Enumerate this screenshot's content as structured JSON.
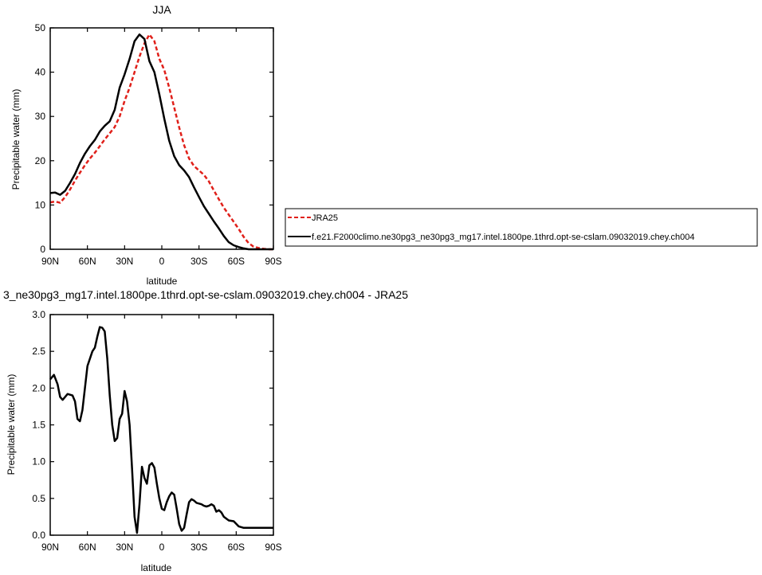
{
  "chart_data": [
    {
      "type": "line",
      "title": "JJA",
      "xlabel": "latitude",
      "ylabel": "Precipitable water (mm)",
      "xlim": [
        90,
        -90
      ],
      "ylim": [
        0,
        50
      ],
      "x_tick_values": [
        90,
        60,
        30,
        0,
        -30,
        -60,
        -90
      ],
      "x_tick_labels": [
        "90N",
        "60N",
        "30N",
        "0",
        "30S",
        "60S",
        "90S"
      ],
      "y_tick_values": [
        0,
        10,
        20,
        30,
        40,
        50
      ],
      "y_tick_labels": [
        "0",
        "10",
        "20",
        "30",
        "40",
        "50"
      ],
      "grid": false,
      "legend_position": "right",
      "series": [
        {
          "name": "JRA25",
          "color": "#e0201a",
          "dash": "dashed",
          "x": [
            90,
            86,
            82,
            78,
            74,
            70,
            66,
            62,
            58,
            54,
            50,
            46,
            42,
            38,
            34,
            30,
            26,
            22,
            18,
            14,
            10,
            6,
            2,
            -2,
            -6,
            -10,
            -14,
            -18,
            -22,
            -26,
            -30,
            -34,
            -38,
            -42,
            -46,
            -50,
            -54,
            -58,
            -62,
            -66,
            -70,
            -74,
            -78,
            -82,
            -86,
            -90
          ],
          "y": [
            10.6,
            10.8,
            10.5,
            11.8,
            13.5,
            15.5,
            17.3,
            19.0,
            20.5,
            21.8,
            23.3,
            24.8,
            26.2,
            27.6,
            30.0,
            33.5,
            36.5,
            40.0,
            43.5,
            46.5,
            48.5,
            47.0,
            43.0,
            40.5,
            36.5,
            32.0,
            27.5,
            23.5,
            20.5,
            18.8,
            17.8,
            16.8,
            15.3,
            13.3,
            11.3,
            9.4,
            7.8,
            6.2,
            4.6,
            2.8,
            1.4,
            0.6,
            0.3,
            0.1,
            0.0,
            0.0
          ]
        },
        {
          "name": "f.e21.F2000climo.ne30pg3_ne30pg3_mg17.intel.1800pe.1thrd.opt-se-cslam.09032019.chey.ch004",
          "color": "#000000",
          "dash": "solid",
          "x": [
            90,
            86,
            82,
            78,
            74,
            70,
            66,
            62,
            58,
            54,
            50,
            46,
            42,
            38,
            34,
            30,
            26,
            22,
            18,
            14,
            10,
            6,
            2,
            -2,
            -6,
            -10,
            -14,
            -18,
            -22,
            -26,
            -30,
            -34,
            -38,
            -42,
            -46,
            -50,
            -54,
            -58,
            -62,
            -66,
            -70,
            -74,
            -78,
            -82,
            -86,
            -90
          ],
          "y": [
            12.7,
            12.8,
            12.3,
            13.2,
            15.0,
            17.0,
            19.5,
            21.6,
            23.3,
            24.7,
            26.6,
            27.9,
            28.9,
            31.5,
            36.5,
            39.5,
            43.0,
            47.0,
            48.5,
            47.5,
            42.5,
            40.0,
            35.0,
            29.5,
            24.5,
            21.0,
            19.0,
            17.8,
            16.3,
            14.0,
            11.8,
            9.7,
            8.0,
            6.3,
            4.7,
            3.0,
            1.6,
            0.9,
            0.5,
            0.2,
            0.0,
            0.0,
            0.0,
            0.0,
            0.0,
            0.0
          ]
        }
      ]
    },
    {
      "type": "line",
      "title": "3_ne30pg3_mg17.intel.1800pe.1thrd.opt-se-cslam.09032019.chey.ch004 - JRA25",
      "xlabel": "latitude",
      "ylabel": "Precipitable water (mm)",
      "xlim": [
        90,
        -90
      ],
      "ylim": [
        0,
        3
      ],
      "x_tick_values": [
        90,
        60,
        30,
        0,
        -30,
        -60,
        -90
      ],
      "x_tick_labels": [
        "90N",
        "60N",
        "30N",
        "0",
        "30S",
        "60S",
        "90S"
      ],
      "y_tick_values": [
        0,
        0.5,
        1,
        1.5,
        2,
        2.5,
        3
      ],
      "y_tick_labels": [
        "0.0",
        "0.5",
        "1.0",
        "1.5",
        "2.0",
        "2.5",
        "3.0"
      ],
      "grid": false,
      "series": [
        {
          "color": "#000000",
          "dash": "solid",
          "x": [
            90,
            87,
            84,
            82,
            80,
            76,
            72,
            70,
            68,
            66,
            64,
            60,
            56,
            54,
            52,
            50,
            48,
            46,
            44,
            42,
            40,
            38,
            36,
            34,
            32,
            30,
            28,
            26,
            24,
            22,
            20,
            18,
            16,
            14,
            12,
            10,
            8,
            6,
            4,
            2,
            0,
            -2,
            -4,
            -6,
            -8,
            -10,
            -12,
            -14,
            -16,
            -18,
            -20,
            -22,
            -24,
            -26,
            -28,
            -30,
            -32,
            -34,
            -36,
            -38,
            -40,
            -42,
            -44,
            -46,
            -48,
            -50,
            -54,
            -58,
            -62,
            -66,
            -70,
            -74,
            -78,
            -82,
            -86,
            -90
          ],
          "y": [
            2.12,
            2.18,
            2.05,
            1.88,
            1.84,
            1.92,
            1.9,
            1.82,
            1.58,
            1.55,
            1.7,
            2.3,
            2.5,
            2.55,
            2.7,
            2.83,
            2.82,
            2.77,
            2.4,
            1.9,
            1.5,
            1.28,
            1.32,
            1.58,
            1.65,
            1.96,
            1.82,
            1.5,
            0.9,
            0.25,
            0.03,
            0.42,
            0.93,
            0.78,
            0.7,
            0.95,
            0.98,
            0.92,
            0.7,
            0.5,
            0.36,
            0.34,
            0.45,
            0.53,
            0.58,
            0.55,
            0.36,
            0.15,
            0.06,
            0.1,
            0.28,
            0.45,
            0.49,
            0.47,
            0.44,
            0.43,
            0.42,
            0.4,
            0.39,
            0.4,
            0.42,
            0.4,
            0.32,
            0.34,
            0.31,
            0.25,
            0.2,
            0.19,
            0.12,
            0.1,
            0.1,
            0.1,
            0.1,
            0.1,
            0.1,
            0.1
          ]
        }
      ]
    }
  ]
}
